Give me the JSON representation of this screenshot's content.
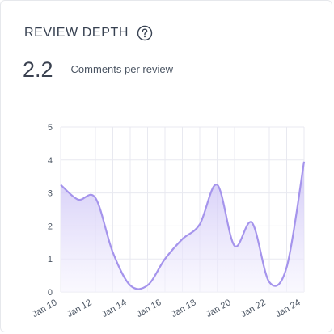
{
  "widget": {
    "title": "REVIEW DEPTH",
    "help_icon": "question-circle-icon",
    "metric_value": "2.2",
    "metric_label": "Comments per review"
  },
  "colors": {
    "line": "#a594ec",
    "fill_top": "#c9bff5",
    "fill_bottom": "#f6f4fe",
    "grid": "#e8e9f0",
    "tick_text": "#4b5563"
  },
  "chart_data": {
    "type": "area",
    "title": "",
    "xlabel": "",
    "ylabel": "",
    "ylim": [
      0,
      5
    ],
    "y_ticks": [
      0,
      1,
      2,
      3,
      4,
      5
    ],
    "x_tick_labels": [
      "Jan 10",
      "Jan 12",
      "Jan 14",
      "Jan 16",
      "Jan 18",
      "Jan 20",
      "Jan 22",
      "Jan 24"
    ],
    "grid": true,
    "series": [
      {
        "x": [
          "Jan 10",
          "Jan 11",
          "Jan 12",
          "Jan 13",
          "Jan 14",
          "Jan 15",
          "Jan 16",
          "Jan 17",
          "Jan 18",
          "Jan 19",
          "Jan 20",
          "Jan 21",
          "Jan 22",
          "Jan 23",
          "Jan 24"
        ],
        "values": [
          3.25,
          2.8,
          2.85,
          1.2,
          0.2,
          0.2,
          1.0,
          1.6,
          2.05,
          3.25,
          1.4,
          2.1,
          0.3,
          0.75,
          3.95
        ]
      }
    ]
  }
}
